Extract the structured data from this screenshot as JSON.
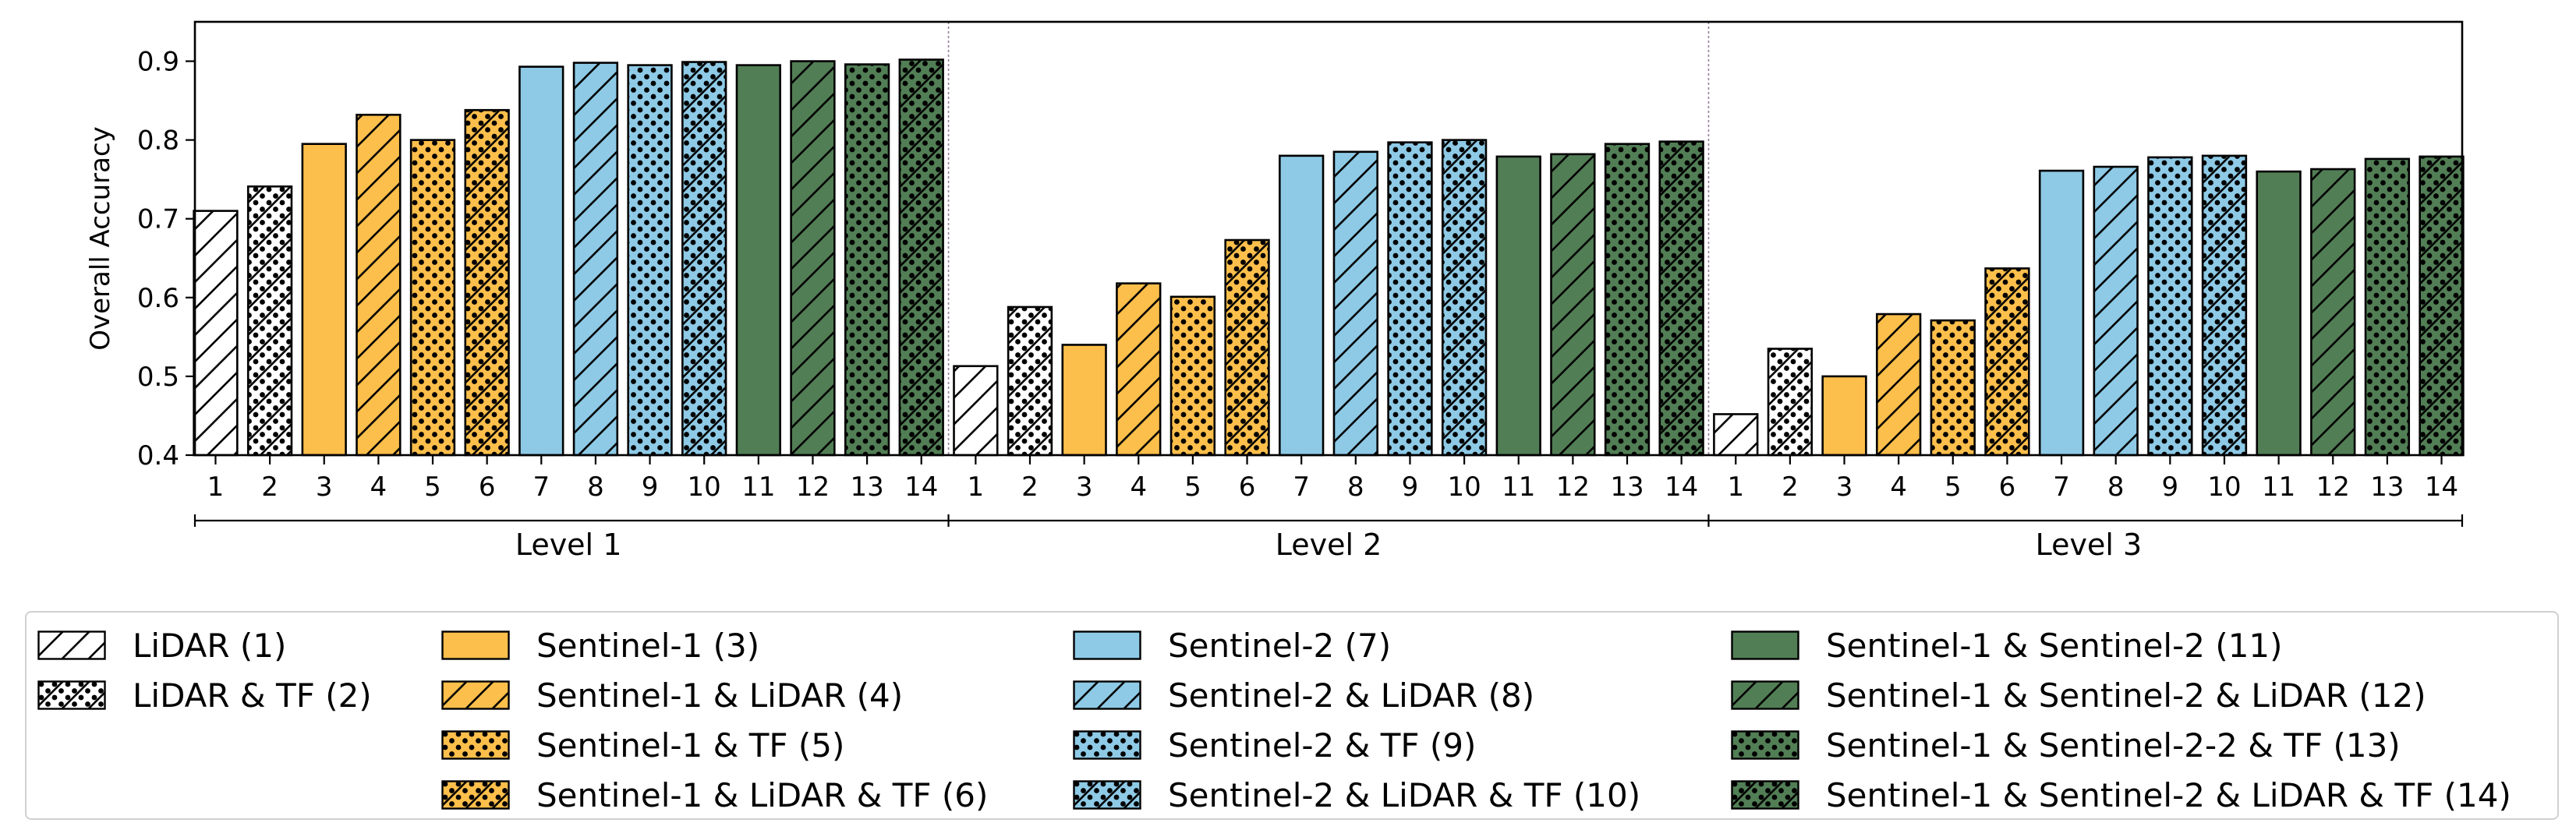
{
  "chart_data": {
    "type": "bar",
    "ylabel": "Overall Accuracy",
    "xlabel": "",
    "ylim": [
      0.4,
      0.95
    ],
    "yticks": [
      "0.4",
      "0.5",
      "0.6",
      "0.7",
      "0.8",
      "0.9"
    ],
    "categories": [
      "1",
      "2",
      "3",
      "4",
      "5",
      "6",
      "7",
      "8",
      "9",
      "10",
      "11",
      "12",
      "13",
      "14"
    ],
    "groups": [
      {
        "label": "Level 1",
        "values": [
          0.71,
          0.741,
          0.795,
          0.832,
          0.8,
          0.838,
          0.893,
          0.898,
          0.895,
          0.899,
          0.895,
          0.9,
          0.896,
          0.902
        ]
      },
      {
        "label": "Level 2",
        "values": [
          0.513,
          0.588,
          0.54,
          0.618,
          0.601,
          0.673,
          0.78,
          0.785,
          0.797,
          0.8,
          0.779,
          0.782,
          0.795,
          0.798
        ]
      },
      {
        "label": "Level 3",
        "values": [
          0.452,
          0.535,
          0.5,
          0.579,
          0.571,
          0.637,
          0.761,
          0.766,
          0.778,
          0.78,
          0.76,
          0.763,
          0.776,
          0.779
        ]
      }
    ],
    "series": [
      {
        "id": 1,
        "name": "LiDAR (1)",
        "color": "#ffffff",
        "pattern": "hatch"
      },
      {
        "id": 2,
        "name": "LiDAR & TF (2)",
        "color": "#ffffff",
        "pattern": "dots-hatch"
      },
      {
        "id": 3,
        "name": "Sentinel-1 (3)",
        "color": "#fdbf4b",
        "pattern": "none"
      },
      {
        "id": 4,
        "name": "Sentinel-1 & LiDAR (4)",
        "color": "#fdbf4b",
        "pattern": "hatch"
      },
      {
        "id": 5,
        "name": "Sentinel-1 & TF (5)",
        "color": "#fdbf4b",
        "pattern": "dots"
      },
      {
        "id": 6,
        "name": "Sentinel-1 & LiDAR & TF (6)",
        "color": "#fdbf4b",
        "pattern": "dots-hatch"
      },
      {
        "id": 7,
        "name": "Sentinel-2 (7)",
        "color": "#8ecae6",
        "pattern": "none"
      },
      {
        "id": 8,
        "name": "Sentinel-2 & LiDAR (8)",
        "color": "#8ecae6",
        "pattern": "hatch"
      },
      {
        "id": 9,
        "name": "Sentinel-2 & TF (9)",
        "color": "#8ecae6",
        "pattern": "dots"
      },
      {
        "id": 10,
        "name": "Sentinel-2 & LiDAR & TF (10)",
        "color": "#8ecae6",
        "pattern": "dots-hatch"
      },
      {
        "id": 11,
        "name": "Sentinel-1 & Sentinel-2 (11)",
        "color": "#527e55",
        "pattern": "none"
      },
      {
        "id": 12,
        "name": "Sentinel-1 & Sentinel-2 & LiDAR (12)",
        "color": "#527e55",
        "pattern": "hatch"
      },
      {
        "id": 13,
        "name": "Sentinel-1 & Sentinel-2-2 & TF (13)",
        "color": "#527e55",
        "pattern": "dots"
      },
      {
        "id": 14,
        "name": "Sentinel-1 & Sentinel-2 & LiDAR & TF (14)",
        "color": "#527e55",
        "pattern": "dots-hatch"
      }
    ],
    "legend_position": "bottom"
  }
}
